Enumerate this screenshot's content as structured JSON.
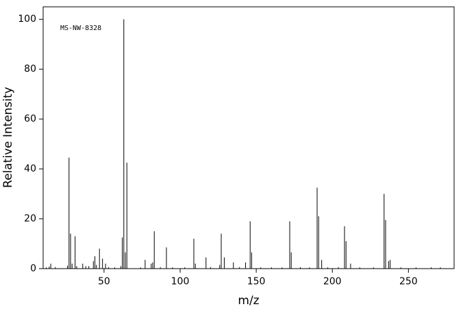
{
  "chart_data": {
    "type": "stem",
    "annotation": "MS-NW-8328",
    "xlabel": "m/z",
    "ylabel": "Relative Intensity",
    "x": [
      12,
      14,
      15,
      18,
      26,
      27,
      28,
      29,
      31,
      32,
      36,
      38,
      40,
      43,
      44,
      45,
      47,
      49,
      51,
      53,
      57,
      61,
      62,
      63,
      64,
      65,
      74,
      77,
      81,
      82,
      83,
      87,
      91,
      95,
      103,
      109,
      110,
      117,
      120,
      126,
      127,
      129,
      135,
      139,
      143,
      146,
      147,
      153,
      160,
      167,
      172,
      173,
      179,
      185,
      190,
      191,
      193,
      197,
      204,
      208,
      209,
      212,
      218,
      227,
      234,
      235,
      237,
      238,
      245,
      255,
      265,
      271
    ],
    "y": [
      0.5,
      0.8,
      2,
      0.6,
      1.2,
      44.5,
      14,
      2,
      13,
      1,
      2,
      1,
      1,
      3,
      5,
      1.5,
      8,
      4,
      2,
      0.6,
      0.5,
      1,
      12.5,
      100,
      6.5,
      42.5,
      0.5,
      3.5,
      2,
      2.5,
      15,
      0.6,
      8.5,
      0.5,
      0.5,
      12,
      2,
      4.5,
      0.6,
      1.5,
      14,
      4.5,
      2.5,
      0.6,
      2.5,
      19,
      6.5,
      0.5,
      0.5,
      0.5,
      19,
      6.5,
      0.6,
      0.5,
      32.5,
      21,
      3.5,
      0.5,
      0.6,
      17,
      11,
      2,
      0.5,
      0.5,
      30,
      19.5,
      3,
      3.5,
      0.5,
      0.5,
      0.5,
      0.5
    ],
    "color": "#000000",
    "xlim": [
      10,
      280
    ],
    "ylim": [
      0,
      105
    ],
    "xticks": [
      50,
      100,
      150,
      200,
      250
    ],
    "yticks": [
      0,
      20,
      40,
      60,
      80,
      100
    ]
  }
}
